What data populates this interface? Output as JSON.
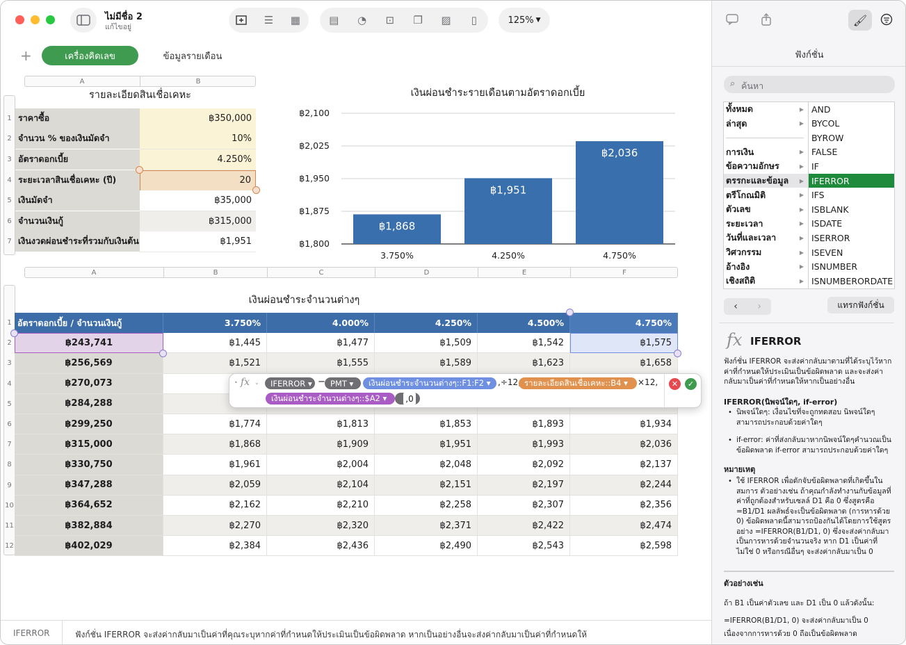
{
  "window": {
    "doc_title": "ไม่มีชื่อ 2",
    "doc_subtitle": "แก้ไขอยู่",
    "zoom": "125%"
  },
  "tabs": [
    {
      "label": "เครื่องคิดเลข",
      "active": true
    },
    {
      "label": "ข้อมูลรายเดือน",
      "active": false
    }
  ],
  "table1": {
    "title": "รายละเอียดสินเชื่อเคหะ",
    "col_headers": [
      "A",
      "B"
    ],
    "rows": [
      {
        "n": "1",
        "label": "ราคาซื้อ",
        "value": "฿350,000"
      },
      {
        "n": "2",
        "label": "จำนวน % ของเงินมัดจำ",
        "value": "10%"
      },
      {
        "n": "3",
        "label": "อัตราดอกเบี้ย",
        "value": "4.250%"
      },
      {
        "n": "4",
        "label": "ระยะเวลาสินเชื่อเคหะ (ปี)",
        "value": "20"
      },
      {
        "n": "5",
        "label": "เงินมัดจำ",
        "value": "฿35,000"
      },
      {
        "n": "6",
        "label": "จำนวนเงินกู้",
        "value": "฿315,000"
      },
      {
        "n": "7",
        "label": "เงินงวดผ่อนชำระที่รวมกับเงินต้น",
        "value": "฿1,951"
      }
    ]
  },
  "chart_data": {
    "type": "bar",
    "title": "เงินผ่อนชำระรายเดือนตามอัตราดอกเบี้ย",
    "categories": [
      "3.750%",
      "4.250%",
      "4.750%"
    ],
    "values": [
      1868,
      1951,
      2036
    ],
    "data_labels": [
      "฿1,868",
      "฿1,951",
      "฿2,036"
    ],
    "ylim": [
      1800,
      2100
    ],
    "yticks": [
      "฿1,800",
      "฿1,875",
      "฿1,950",
      "฿2,025",
      "฿2,100"
    ],
    "color": "#3a6fad",
    "grid": true
  },
  "table2": {
    "title": "เงินผ่อนชำระจำนวนต่างๆ",
    "col_headers": [
      "A",
      "B",
      "C",
      "D",
      "E",
      "F"
    ],
    "header": [
      "อัตราดอกเบี้ย / จำนวนเงินกู้",
      "3.750%",
      "4.000%",
      "4.250%",
      "4.500%",
      "4.750%"
    ],
    "rows": [
      [
        "฿243,741",
        "฿1,445",
        "฿1,477",
        "฿1,509",
        "฿1,542",
        "฿1,575"
      ],
      [
        "฿256,569",
        "฿1,521",
        "฿1,555",
        "฿1,589",
        "฿1,623",
        "฿1,658"
      ],
      [
        "฿270,073",
        "",
        "",
        "",
        "",
        ""
      ],
      [
        "฿284,288",
        "",
        "",
        "",
        "",
        ""
      ],
      [
        "฿299,250",
        "฿1,774",
        "฿1,813",
        "฿1,853",
        "฿1,893",
        "฿1,934"
      ],
      [
        "฿315,000",
        "฿1,868",
        "฿1,909",
        "฿1,951",
        "฿1,993",
        "฿2,036"
      ],
      [
        "฿330,750",
        "฿1,961",
        "฿2,004",
        "฿2,048",
        "฿2,092",
        "฿2,137"
      ],
      [
        "฿347,288",
        "฿2,059",
        "฿2,104",
        "฿2,151",
        "฿2,197",
        "฿2,244"
      ],
      [
        "฿364,652",
        "฿2,162",
        "฿2,210",
        "฿2,258",
        "฿2,307",
        "฿2,356"
      ],
      [
        "฿382,884",
        "฿2,270",
        "฿2,320",
        "฿2,371",
        "฿2,422",
        "฿2,474"
      ],
      [
        "฿402,029",
        "฿2,384",
        "฿2,436",
        "฿2,490",
        "฿2,543",
        "฿2,598"
      ]
    ]
  },
  "formula": {
    "fx": "fx",
    "fn": "IFERROR ▾",
    "minus": "−",
    "pmt": "PMT ▾",
    "ref1": "เงินผ่อนชำระจำนวนต่างๆ::F1:F2 ▾",
    "div12": ",÷12,",
    "ref2": "รายละเอียดสินเชื่อเคหะ::B4 ▾",
    "times12": "×12,",
    "ref3": "เงินผ่อนชำระจำนวนต่างๆ::$A2 ▾",
    "tail": ",0"
  },
  "sidebar": {
    "title": "ฟังก์ชั่น",
    "search_placeholder": "ค้นหา",
    "categories": [
      "ทั้งหมด",
      "ล่าสุด",
      "",
      "การเงิน",
      "ข้อความอักษร",
      "ตรรกะและข้อมูล",
      "ตรีโกณมิติ",
      "ตัวเลข",
      "ระยะเวลา",
      "วันที่และเวลา",
      "วิศวกรรม",
      "อ้างอิง",
      "เชิงสถิติ"
    ],
    "functions": [
      "AND",
      "BYCOL",
      "BYROW",
      "FALSE",
      "IF",
      "IFERROR",
      "IFS",
      "ISBLANK",
      "ISDATE",
      "ISERROR",
      "ISEVEN",
      "ISNUMBER",
      "ISNUMBERORDATE"
    ],
    "insert_button": "แทรกฟังก์ชั่น",
    "fn_title": "IFERROR",
    "fn_desc": "ฟังก์ชั่น IFERROR จะส่งค่ากลับมาตามที่ได้ระบุไว้หากค่าที่กำหนดให้ประเมินเป็นข้อผิดพลาด และจะส่งค่ากลับมาเป็นค่าที่กำหนดให้หากเป็นอย่างอื่น",
    "syntax": "IFERROR(นิพจน์ใดๆ, if-error)",
    "arg1": "นิพจน์ใดๆ: เงื่อนไขที่จะถูกทดสอบ นิพจน์ใดๆ สามารถประกอบด้วยค่าใดๆ",
    "arg2": "if-error: ค่าที่ส่งกลับมาหากนิพจน์ใดๆคำนวณเป็นข้อผิดพลาด if-error สามารถประกอบด้วยค่าใดๆ",
    "notes_title": "หมายเหตุ",
    "note1": "ใช้ IFERROR เพื่อดักจับข้อผิดพลาดที่เกิดขึ้นในสมการ ตัวอย่างเช่น ถ้าคุณกำลังทำงานกับข้อมูลที่ค่าที่ถูกต้องสำหรับเซลล์ D1 คือ 0 ซึ่งสูตรคือ =B1/D1 ผลลัพธ์จะเป็นข้อผิดพลาด (การหารด้วย 0) ข้อผิดพลาดนี้สามารถป้องกันได้โดยการใช้สูตรอย่าง =IFERROR(B1/D1, 0) ซึ่งจะส่งค่ากลับมาเป็นการหารด้วยจำนวนจริง หาก D1 เป็นค่าที่ไม่ใช่ 0 หรือกรณีอื่นๆ จะส่งค่ากลับมาเป็น 0",
    "example_title": "ตัวอย่างเช่น",
    "example1": "ถ้า B1 เป็นค่าตัวเลข และ D1 เป็น 0 แล้วดังนั้น:",
    "example2": "=IFERROR(B1/D1, 0) จะส่งค่ากลับมาเป็น 0",
    "example3": "เนื่องจากการหารด้วย 0 ถือเป็นข้อผิดพลาด"
  },
  "statusbar": {
    "fn": "IFERROR",
    "desc": "ฟังก์ชั่น IFERROR จะส่งค่ากลับมาเป็นค่าที่คุณระบุหากค่าที่กำหนดให้ประเมินเป็นข้อผิดพลาด หากเป็นอย่างอื่นจะส่งค่ากลับมาเป็นค่าที่กำหนดให้"
  }
}
